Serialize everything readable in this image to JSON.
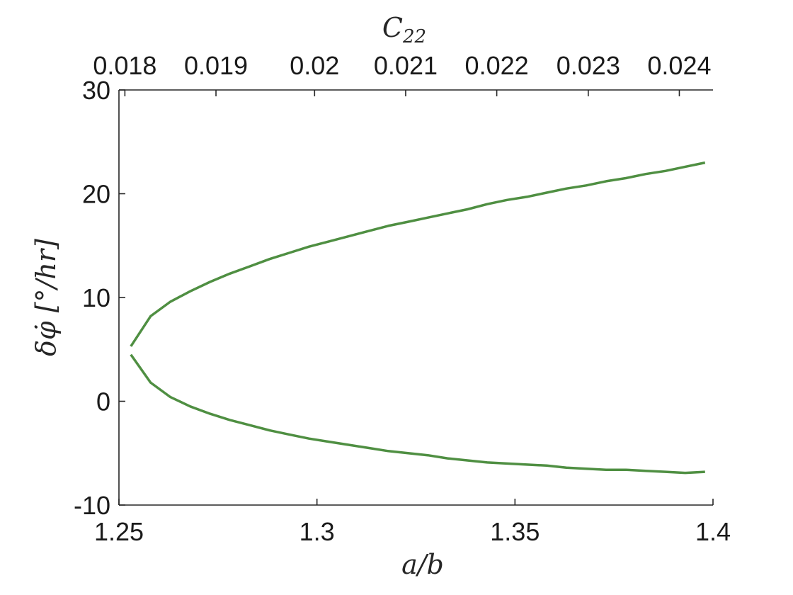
{
  "chart_data": {
    "type": "line",
    "xlabel": "a/b",
    "ylabel": "δφ̇ [°/hr]",
    "top_xlabel": "C22",
    "xlim": [
      1.25,
      1.4
    ],
    "ylim": [
      -10,
      30
    ],
    "x_ticks": [
      1.25,
      1.3,
      1.35,
      1.4
    ],
    "x_tick_labels": [
      "1.25",
      "1.3",
      "1.35",
      "1.4"
    ],
    "y_ticks": [
      -10,
      0,
      10,
      20,
      30
    ],
    "y_tick_labels": [
      "-10",
      "0",
      "10",
      "20",
      "30"
    ],
    "top_ticks": [
      1.2515,
      1.2745,
      1.2994,
      1.3224,
      1.3454,
      1.3685,
      1.3915
    ],
    "top_tick_labels": [
      "0.018",
      "0.019",
      "0.02",
      "0.021",
      "0.022",
      "0.023",
      "0.024"
    ],
    "grid": false,
    "line_color": "#4f8f42",
    "series": [
      {
        "x": [
          1.253,
          1.258,
          1.263,
          1.268,
          1.273,
          1.278,
          1.283,
          1.288,
          1.293,
          1.298,
          1.303,
          1.308,
          1.313,
          1.318,
          1.323,
          1.328,
          1.333,
          1.338,
          1.343,
          1.348,
          1.353,
          1.358,
          1.363,
          1.368,
          1.373,
          1.378,
          1.383,
          1.388,
          1.393,
          1.398
        ],
        "y": [
          5.3,
          8.2,
          9.6,
          10.6,
          11.5,
          12.3,
          13.0,
          13.7,
          14.3,
          14.9,
          15.4,
          15.9,
          16.4,
          16.9,
          17.3,
          17.7,
          18.1,
          18.5,
          19.0,
          19.4,
          19.7,
          20.1,
          20.5,
          20.8,
          21.2,
          21.5,
          21.9,
          22.2,
          22.6,
          23.0
        ]
      },
      {
        "x": [
          1.253,
          1.258,
          1.263,
          1.268,
          1.273,
          1.278,
          1.283,
          1.288,
          1.293,
          1.298,
          1.303,
          1.308,
          1.313,
          1.318,
          1.323,
          1.328,
          1.333,
          1.338,
          1.343,
          1.348,
          1.353,
          1.358,
          1.363,
          1.368,
          1.373,
          1.378,
          1.383,
          1.388,
          1.393,
          1.398
        ],
        "y": [
          4.5,
          1.8,
          0.4,
          -0.5,
          -1.2,
          -1.8,
          -2.3,
          -2.8,
          -3.2,
          -3.6,
          -3.9,
          -4.2,
          -4.5,
          -4.8,
          -5.0,
          -5.2,
          -5.5,
          -5.7,
          -5.9,
          -6.0,
          -6.1,
          -6.2,
          -6.4,
          -6.5,
          -6.6,
          -6.6,
          -6.7,
          -6.8,
          -6.9,
          -6.8
        ]
      }
    ]
  }
}
